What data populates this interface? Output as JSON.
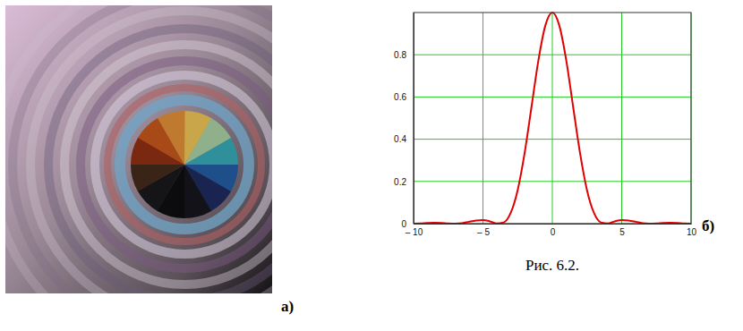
{
  "chart_data": {
    "type": "line",
    "color": "#e00000",
    "grid": true,
    "x": [
      -10,
      -9.5,
      -9,
      -8.5,
      -8,
      -7.5,
      -7,
      -6.5,
      -6,
      -5.5,
      -5,
      -4.5,
      -4,
      -3.5,
      -3,
      -2.5,
      -2,
      -1.5,
      -1,
      -0.5,
      0,
      0.5,
      1,
      1.5,
      2,
      2.5,
      3,
      3.5,
      4,
      4.5,
      5,
      5.5,
      6,
      6.5,
      7,
      7.5,
      8,
      8.5,
      9,
      9.5,
      10
    ],
    "values": [
      0.0,
      0.001,
      0.003,
      0.004,
      0.003,
      0.001,
      0.0,
      0.002,
      0.009,
      0.015,
      0.017,
      0.011,
      0.001,
      0.006,
      0.051,
      0.158,
      0.333,
      0.553,
      0.775,
      0.939,
      1.0,
      0.939,
      0.775,
      0.553,
      0.333,
      0.158,
      0.051,
      0.006,
      0.001,
      0.011,
      0.017,
      0.015,
      0.009,
      0.002,
      0.0,
      0.001,
      0.003,
      0.004,
      0.003,
      0.001,
      0.0
    ],
    "xlim": [
      -10,
      10
    ],
    "xticks": [
      {
        "value": -10,
        "label": "– 10"
      },
      {
        "value": -5,
        "label": "– 5"
      },
      0,
      5,
      10
    ],
    "ylim": [
      0,
      1
    ],
    "yticks": [
      0,
      0.2,
      0.4,
      0.6,
      0.8
    ]
  },
  "figure": {
    "caption": "Рис. 6.2.",
    "labels": [
      "а)",
      "б)"
    ]
  }
}
